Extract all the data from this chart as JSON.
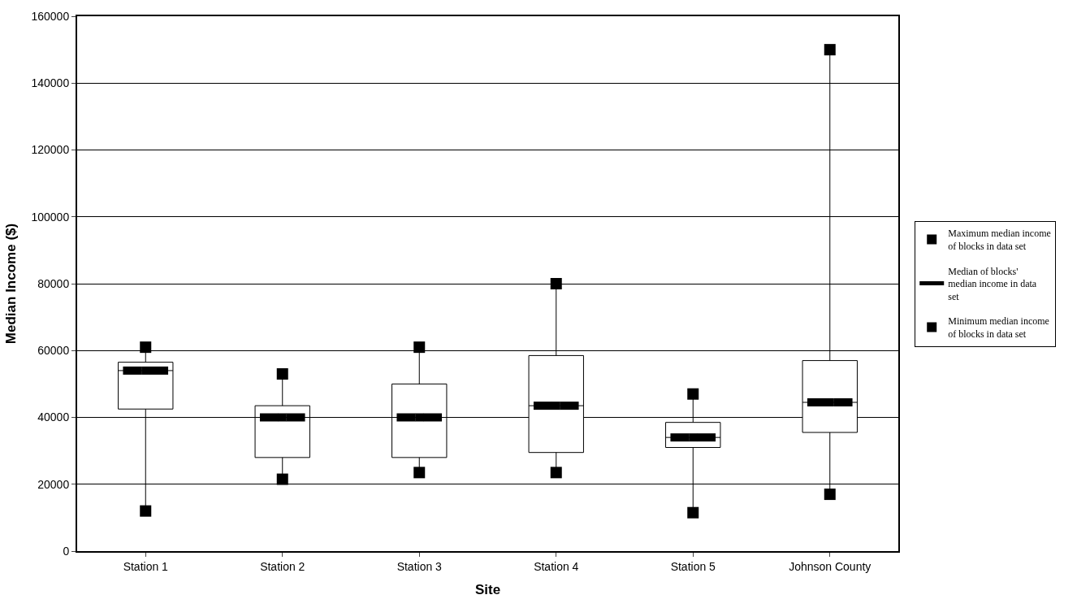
{
  "chart_data": {
    "type": "box",
    "xlabel": "Site",
    "ylabel": "Median Income ($)",
    "categories": [
      "Station 1",
      "Station 2",
      "Station 3",
      "Station 4",
      "Station 5",
      "Johnson County"
    ],
    "boxes": [
      {
        "low": 12000,
        "q1": 42500,
        "median": 54000,
        "q3": 56500,
        "high": 61000
      },
      {
        "low": 21500,
        "q1": 28000,
        "median": 40000,
        "q3": 43500,
        "high": 53000
      },
      {
        "low": 23500,
        "q1": 28000,
        "median": 40000,
        "q3": 50000,
        "high": 61000
      },
      {
        "low": 23500,
        "q1": 29500,
        "median": 43500,
        "q3": 58500,
        "high": 80000
      },
      {
        "low": 11500,
        "q1": 31000,
        "median": 34000,
        "q3": 38500,
        "high": 47000
      },
      {
        "low": 17000,
        "q1": 35500,
        "median": 44500,
        "q3": 57000,
        "high": 150000
      }
    ],
    "series": [
      {
        "name": "Maximum median income of blocks in data set",
        "type": "scatter",
        "marker": "square",
        "color": "#000000",
        "values": [
          61000,
          53000,
          61000,
          80000,
          47000,
          150000
        ]
      },
      {
        "name": "Median of blocks' median income in data set",
        "type": "scatter",
        "marker": "square",
        "line_style": "solid",
        "color": "#000000",
        "values": [
          54000,
          40000,
          40000,
          43500,
          34000,
          44500
        ]
      },
      {
        "name": "Minimum median income of blocks in data set",
        "type": "scatter",
        "marker": "square",
        "color": "#000000",
        "values": [
          12000,
          21500,
          23500,
          23500,
          11500,
          17000
        ]
      }
    ],
    "ylim": [
      0,
      160000
    ],
    "yticks": [
      0,
      20000,
      40000,
      60000,
      80000,
      100000,
      120000,
      140000,
      160000
    ],
    "grid": "y",
    "legend": "right"
  }
}
